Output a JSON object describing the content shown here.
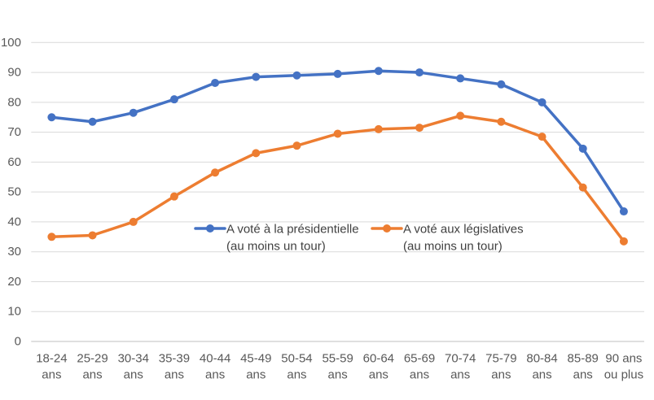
{
  "chart_data": {
    "type": "line",
    "title": "",
    "xlabel": "",
    "ylabel": "",
    "ylim": [
      0,
      100
    ],
    "yticks": [
      0,
      10,
      20,
      30,
      40,
      50,
      60,
      70,
      80,
      90,
      100
    ],
    "grid": true,
    "legend_position": "inside-center",
    "categories": [
      [
        "18-24",
        "ans"
      ],
      [
        "25-29",
        "ans"
      ],
      [
        "30-34",
        "ans"
      ],
      [
        "35-39",
        "ans"
      ],
      [
        "40-44",
        "ans"
      ],
      [
        "45-49",
        "ans"
      ],
      [
        "50-54",
        "ans"
      ],
      [
        "55-59",
        "ans"
      ],
      [
        "60-64",
        "ans"
      ],
      [
        "65-69",
        "ans"
      ],
      [
        "70-74",
        "ans"
      ],
      [
        "75-79",
        "ans"
      ],
      [
        "80-84",
        "ans"
      ],
      [
        "85-89",
        "ans"
      ],
      [
        "90 ans",
        "ou plus"
      ]
    ],
    "series": [
      {
        "name": "A voté à la présidentielle (au moins un tour)",
        "legend_lines": [
          "A voté à la présidentielle",
          "(au moins un tour)"
        ],
        "color": "#4472C4",
        "values": [
          75,
          73.5,
          76.5,
          81,
          86.5,
          88.5,
          89,
          89.5,
          90.5,
          90,
          88,
          86,
          80,
          64.5,
          43.5
        ]
      },
      {
        "name": "A voté aux législatives (au moins un tour)",
        "legend_lines": [
          "A voté aux législatives",
          "(au moins un tour)"
        ],
        "color": "#ED7D31",
        "values": [
          35,
          35.5,
          40,
          48.5,
          56.5,
          63,
          65.5,
          69.5,
          71,
          71.5,
          75.5,
          73.5,
          68.5,
          51.5,
          33.5
        ]
      }
    ]
  },
  "colors": {
    "background": "#FFFFFF",
    "gridline": "#D9D9D9",
    "axis_line": "#BFBFBF",
    "axis_text": "#595959",
    "legend_text": "#404040",
    "series_blue": "#4472C4",
    "series_orange": "#ED7D31"
  }
}
